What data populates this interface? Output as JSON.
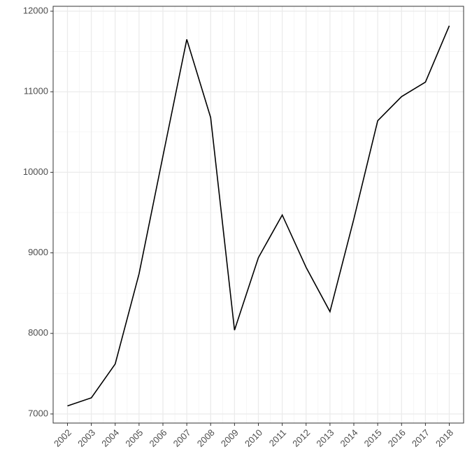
{
  "chart_data": {
    "type": "line",
    "x": [
      2002,
      2003,
      2004,
      2005,
      2006,
      2007,
      2008,
      2009,
      2010,
      2011,
      2012,
      2013,
      2014,
      2015,
      2016,
      2017,
      2018
    ],
    "series": [
      {
        "color": "#000000",
        "values": [
          7100,
          7200,
          7620,
          8740,
          10200,
          11650,
          10680,
          8040,
          8940,
          9470,
          8820,
          8270,
          9420,
          10640,
          10940,
          11120,
          11820
        ]
      }
    ],
    "xlim": [
      2001.4,
      2018.6
    ],
    "ylim": [
      6887,
      12061
    ],
    "xticks": [
      2002,
      2003,
      2004,
      2005,
      2006,
      2007,
      2008,
      2009,
      2010,
      2011,
      2012,
      2013,
      2014,
      2015,
      2016,
      2017,
      2018
    ],
    "yticks": [
      7000,
      8000,
      9000,
      10000,
      11000,
      12000
    ],
    "grid": true,
    "minor_grid": true
  }
}
